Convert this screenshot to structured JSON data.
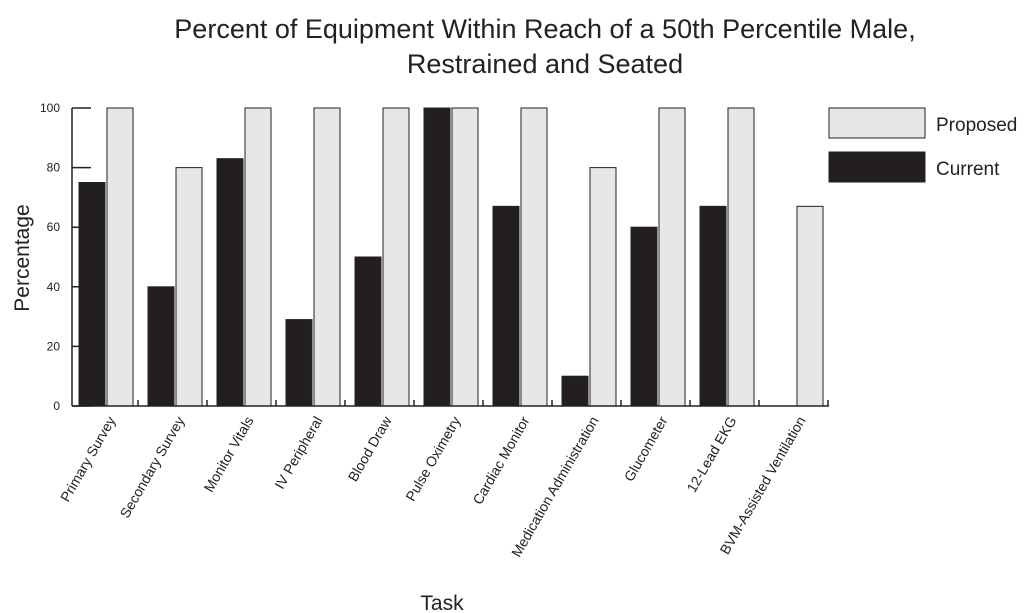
{
  "chart_data": {
    "type": "bar",
    "title_lines": [
      "Percent of Equipment Within Reach of a 50th Percentile Male,",
      "Restrained and Seated"
    ],
    "xlabel": "Task",
    "ylabel": "Percentage",
    "ylim": [
      0,
      100
    ],
    "yticks": [
      0,
      20,
      40,
      60,
      80,
      100
    ],
    "grid": false,
    "legend_position": "top-right",
    "categories": [
      "Primary Survey",
      "Secondary Survey",
      "Monitor Vitals",
      "IV Peripheral",
      "Blood Draw",
      "Pulse Oximetry",
      "Cardiac Monitor",
      "Medication Administration",
      "Glucometer",
      "12-Lead EKG",
      "BVM-Assisted Ventilation"
    ],
    "series": [
      {
        "name": "Current",
        "color": "#231f20",
        "values": [
          75,
          40,
          83,
          29,
          50,
          100,
          67,
          10,
          60,
          67,
          0
        ]
      },
      {
        "name": "Proposed",
        "color": "#e6e7e8",
        "values": [
          100,
          80,
          100,
          100,
          100,
          100,
          100,
          80,
          100,
          100,
          67
        ]
      }
    ],
    "legend_order": [
      "Proposed",
      "Current"
    ]
  }
}
